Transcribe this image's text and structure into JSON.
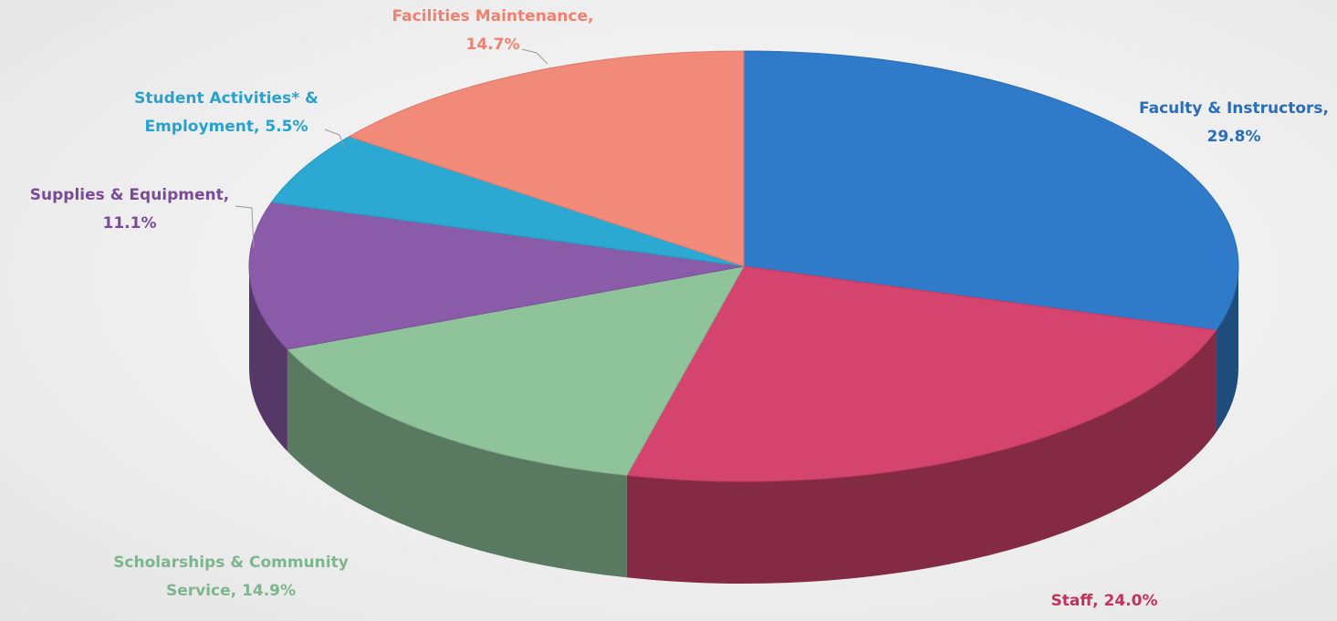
{
  "chart_data": {
    "type": "pie3d",
    "values": [
      29.8,
      24.0,
      14.9,
      11.1,
      5.5,
      14.7
    ],
    "data_labels": [
      [
        "Faculty & Instructors,",
        "29.8%"
      ],
      [
        "Staff, 24.0%"
      ],
      [
        "Scholarships & Community",
        "Service, 14.9%"
      ],
      [
        "Supplies & Equipment,",
        "11.1%"
      ],
      [
        "Student Activities* &",
        "Employment, 5.5%"
      ],
      [
        "Facilities Maintenance,",
        "14.7%"
      ]
    ],
    "colors": [
      "#2f7ac9",
      "#d5436f",
      "#8fc49b",
      "#8a5ba8",
      "#2ba9d2",
      "#f28a7a"
    ],
    "label_colors": [
      "#2a6db8",
      "#c2325c",
      "#7db68d",
      "#7b4b9a",
      "#27a2cf",
      "#f08070"
    ]
  }
}
